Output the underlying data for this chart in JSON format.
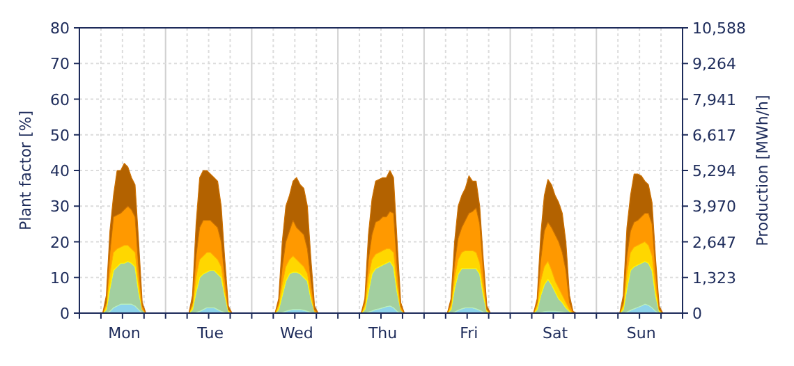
{
  "chart_data": {
    "type": "area",
    "stacked": true,
    "ylabel": "Plant factor [%]",
    "y2label": "Production [MWh/h]",
    "categories": [
      null,
      null,
      null,
      null,
      null,
      null,
      null,
      null,
      null,
      null,
      null,
      null,
      "Mon",
      null,
      null,
      null,
      null,
      null,
      null,
      null,
      null,
      null,
      null,
      null,
      null,
      null,
      null,
      null,
      null,
      null,
      null,
      null,
      null,
      null,
      null,
      null,
      "Tue",
      null,
      null,
      null,
      null,
      null,
      null,
      null,
      null,
      null,
      null,
      null,
      null,
      null,
      null,
      null,
      null,
      null,
      null,
      null,
      null,
      null,
      null,
      null,
      "Wed",
      null,
      null,
      null,
      null,
      null,
      null,
      null,
      null,
      null,
      null,
      null,
      null,
      null,
      null,
      null,
      null,
      null,
      null,
      null,
      null,
      null,
      null,
      null,
      "Thu",
      null,
      null,
      null,
      null,
      null,
      null,
      null,
      null,
      null,
      null,
      null,
      null,
      null,
      null,
      null,
      null,
      null,
      null,
      null,
      null,
      null,
      null,
      null,
      "Fri",
      null,
      null,
      null,
      null,
      null,
      null,
      null,
      null,
      null,
      null,
      null,
      null,
      null,
      null,
      null,
      null,
      null,
      null,
      null,
      null,
      null,
      null,
      null,
      "Sat",
      null,
      null,
      null,
      null,
      null,
      null,
      null,
      null,
      null,
      null,
      null,
      null,
      null,
      null,
      null,
      null,
      null,
      null,
      null,
      null,
      null,
      null,
      null,
      "Sun",
      null,
      null,
      null,
      null,
      null,
      null,
      null,
      null,
      null,
      null,
      null
    ],
    "ylim": [
      0,
      80
    ],
    "yticks": [
      0,
      10,
      20,
      30,
      40,
      50,
      60,
      70,
      80
    ],
    "y2lim": [
      0,
      10588
    ],
    "y2ticks": [
      {
        "value": 0,
        "label": "0"
      },
      {
        "value": 1323,
        "label": "1,323"
      },
      {
        "value": 2647,
        "label": "2,647"
      },
      {
        "value": 3970,
        "label": "3,970"
      },
      {
        "value": 5294,
        "label": "5,294"
      },
      {
        "value": 6617,
        "label": "6,617"
      },
      {
        "value": 7941,
        "label": "7,941"
      },
      {
        "value": 9264,
        "label": "9,264"
      },
      {
        "value": 10588,
        "label": "10,588"
      }
    ],
    "grid": true,
    "series": [
      {
        "color": "#8dd3ea",
        "values": [
          0,
          0,
          0,
          0,
          0,
          0,
          0,
          0,
          0.5,
          1.5,
          2,
          2.5,
          2.5,
          2.5,
          2.5,
          2,
          1,
          0,
          0,
          0,
          0,
          0,
          0,
          0,
          0,
          0,
          0,
          0,
          0,
          0,
          0,
          0,
          0.2,
          0.5,
          1,
          1.5,
          1.5,
          1.5,
          1,
          0.5,
          0.2,
          0,
          0,
          0,
          0,
          0,
          0,
          0,
          0,
          0,
          0,
          0,
          0,
          0,
          0,
          0,
          0.2,
          0.5,
          0.8,
          1,
          1,
          1,
          0.8,
          0.5,
          0.2,
          0,
          0,
          0,
          0,
          0,
          0,
          0,
          0,
          0,
          0,
          0,
          0,
          0,
          0,
          0,
          0.3,
          0.6,
          1,
          1.2,
          1.5,
          1.8,
          2,
          1.5,
          0.5,
          0,
          0,
          0,
          0,
          0,
          0,
          0,
          0,
          0,
          0,
          0,
          0,
          0,
          0,
          0,
          0.3,
          0.8,
          1.2,
          1.5,
          1.5,
          1.5,
          1.2,
          0.8,
          0.3,
          0,
          0,
          0,
          0,
          0,
          0,
          0,
          0,
          0,
          0,
          0,
          0,
          0,
          0,
          0,
          0.2,
          0.4,
          0.5,
          0.5,
          0.5,
          0.4,
          0.3,
          0.2,
          0,
          0,
          0,
          0,
          0,
          0,
          0,
          0,
          0,
          0,
          0,
          0,
          0,
          0,
          0,
          0,
          0.3,
          0.8,
          1.2,
          1.6,
          2,
          2.5,
          2.2,
          1.5,
          0.5,
          0,
          0,
          0,
          0,
          0,
          0,
          0
        ]
      },
      {
        "color": "#a2cfa0",
        "values": [
          0,
          0,
          0,
          0,
          0,
          0,
          0,
          1,
          6.5,
          10.5,
          11,
          11.5,
          11.5,
          12,
          11.5,
          11,
          5,
          1,
          0,
          0,
          0,
          0,
          0,
          0,
          0,
          0,
          0,
          0,
          0,
          0,
          0,
          1,
          5.8,
          9.5,
          10,
          10,
          10.5,
          10.5,
          10,
          9.5,
          4.8,
          0.5,
          0,
          0,
          0,
          0,
          0,
          0,
          0,
          0,
          0,
          0,
          0,
          0,
          0,
          1,
          4.8,
          8.5,
          10.2,
          10.5,
          10.5,
          10,
          9.2,
          8.5,
          3.8,
          0.5,
          0,
          0,
          0,
          0,
          0,
          0,
          0,
          0,
          0,
          0,
          0,
          0,
          0,
          1,
          5.7,
          10.4,
          11.5,
          11.8,
          12,
          12.2,
          12.5,
          11.5,
          5.5,
          1,
          0,
          0,
          0,
          0,
          0,
          0,
          0,
          0,
          0,
          0,
          0,
          0,
          0,
          1,
          6.7,
          10.2,
          11.3,
          11,
          11,
          11,
          11.3,
          10.2,
          4.7,
          0.5,
          0,
          0,
          0,
          0,
          0,
          0,
          0,
          0,
          0,
          0,
          0,
          0,
          0,
          1,
          4.8,
          7.6,
          9,
          7.5,
          5.5,
          3.6,
          2.7,
          1.3,
          0.5,
          0,
          0,
          0,
          0,
          0,
          0,
          0,
          0,
          0,
          0,
          0,
          0,
          0,
          0,
          1,
          6.7,
          11.2,
          11.8,
          11.9,
          12,
          12,
          11.8,
          10.5,
          4.5,
          0.5,
          0,
          0,
          0,
          0,
          0,
          0
        ]
      },
      {
        "color": "#ffd700",
        "values": [
          0,
          0,
          0,
          0,
          0,
          0,
          0,
          1,
          4,
          5,
          5,
          4.5,
          5,
          4.5,
          4,
          4,
          2,
          0,
          0,
          0,
          0,
          0,
          0,
          0,
          0,
          0,
          0,
          0,
          0,
          0,
          0,
          1,
          4,
          5,
          5,
          5.5,
          5,
          4,
          4,
          3,
          1,
          0.5,
          0,
          0,
          0,
          0,
          0,
          0,
          0,
          0,
          0,
          0,
          0,
          0,
          0,
          1,
          3,
          4,
          4,
          4.5,
          3.5,
          3,
          3,
          2,
          1,
          0,
          0,
          0,
          0,
          0,
          0,
          0,
          0,
          0,
          0,
          0,
          0,
          0,
          0,
          1,
          4,
          4,
          4,
          4,
          4,
          4,
          3.5,
          4,
          2,
          0,
          0,
          0,
          0,
          0,
          0,
          0,
          0,
          0,
          0,
          0,
          0,
          0,
          0,
          1,
          3,
          4,
          4.5,
          5,
          5,
          5,
          4.5,
          3,
          2,
          0.5,
          0,
          0,
          0,
          0,
          0,
          0,
          0,
          0,
          0,
          0,
          0,
          0,
          0,
          1,
          4,
          5,
          5,
          4,
          3,
          3,
          2,
          1.5,
          0.5,
          0,
          0,
          0,
          0,
          0,
          0,
          0,
          0,
          0,
          0,
          0,
          0,
          0,
          0,
          1,
          4,
          5,
          5.5,
          5.5,
          5.5,
          5.5,
          5,
          4,
          2,
          0.5,
          0,
          0,
          0,
          0,
          0,
          0
        ]
      },
      {
        "color": "#ff9900",
        "values": [
          0,
          0,
          0,
          0,
          0,
          0,
          0,
          1,
          6,
          10,
          9.5,
          9.5,
          10,
          11,
          11,
          10,
          5,
          1,
          0,
          0,
          0,
          0,
          0,
          0,
          0,
          0,
          0,
          0,
          0,
          0,
          0,
          1,
          6,
          9,
          10,
          9,
          9,
          9,
          9,
          7,
          4,
          0,
          0,
          0,
          0,
          0,
          0,
          0,
          0,
          0,
          0,
          0,
          0,
          0,
          0,
          1,
          5,
          7,
          8,
          10,
          9,
          9,
          9,
          7,
          4,
          0.5,
          0,
          0,
          0,
          0,
          0,
          0,
          0,
          0,
          0,
          0,
          0,
          0,
          0,
          1,
          5,
          7,
          9,
          9,
          9.5,
          9,
          10.5,
          11,
          5,
          1,
          0,
          0,
          0,
          0,
          0,
          0,
          0,
          0,
          0,
          0,
          0,
          0,
          0,
          1,
          4,
          6,
          7,
          8.5,
          10.5,
          11,
          12.5,
          11,
          5,
          0,
          0,
          0,
          0,
          0,
          0,
          0,
          0,
          0,
          0,
          0,
          0,
          0,
          0,
          1,
          6,
          10,
          11,
          12,
          13,
          13,
          12,
          9,
          2,
          0.3,
          0,
          0,
          0,
          0,
          0,
          0,
          0,
          0,
          0,
          0,
          0,
          0,
          0,
          1,
          5,
          6,
          7,
          7,
          7.5,
          8,
          9,
          9,
          5,
          0,
          0,
          0,
          0,
          0,
          0,
          0
        ]
      },
      {
        "color": "#b36200",
        "values": [
          0,
          0,
          0,
          0,
          0,
          0,
          0,
          2,
          6,
          6,
          12.5,
          12,
          13,
          11,
          9,
          9,
          7,
          1,
          0,
          0,
          0,
          0,
          0,
          0,
          0,
          0,
          0,
          0,
          0,
          0,
          0,
          2,
          9,
          14,
          14,
          14,
          13,
          13,
          13,
          10,
          5,
          1,
          0,
          0,
          0,
          0,
          0,
          0,
          0,
          0,
          0,
          0,
          0,
          0,
          0,
          1,
          7,
          10,
          10,
          11,
          14,
          13,
          13,
          12,
          6,
          1,
          0,
          0,
          0,
          0,
          0,
          0,
          0,
          0,
          0,
          0,
          0,
          0,
          0,
          1,
          7,
          10,
          11.5,
          11.5,
          11,
          11,
          11.5,
          10,
          7,
          1,
          0,
          0,
          0,
          0,
          0,
          0,
          0,
          0,
          0,
          0,
          0,
          0,
          0,
          1,
          6,
          9,
          9,
          9,
          10.5,
          8.5,
          7.5,
          5,
          3,
          1,
          0,
          0,
          0,
          0,
          0,
          0,
          0,
          0,
          0,
          0,
          0,
          0,
          0,
          1,
          7,
          10,
          12,
          12,
          11,
          11,
          11,
          8,
          2,
          0.2,
          0,
          0,
          0,
          0,
          0,
          0,
          0,
          0,
          0,
          0,
          0,
          0,
          0,
          2,
          8,
          10,
          13.5,
          13,
          11.5,
          9,
          8,
          6,
          3,
          1,
          0,
          0,
          0,
          0,
          0,
          0
        ]
      }
    ]
  }
}
